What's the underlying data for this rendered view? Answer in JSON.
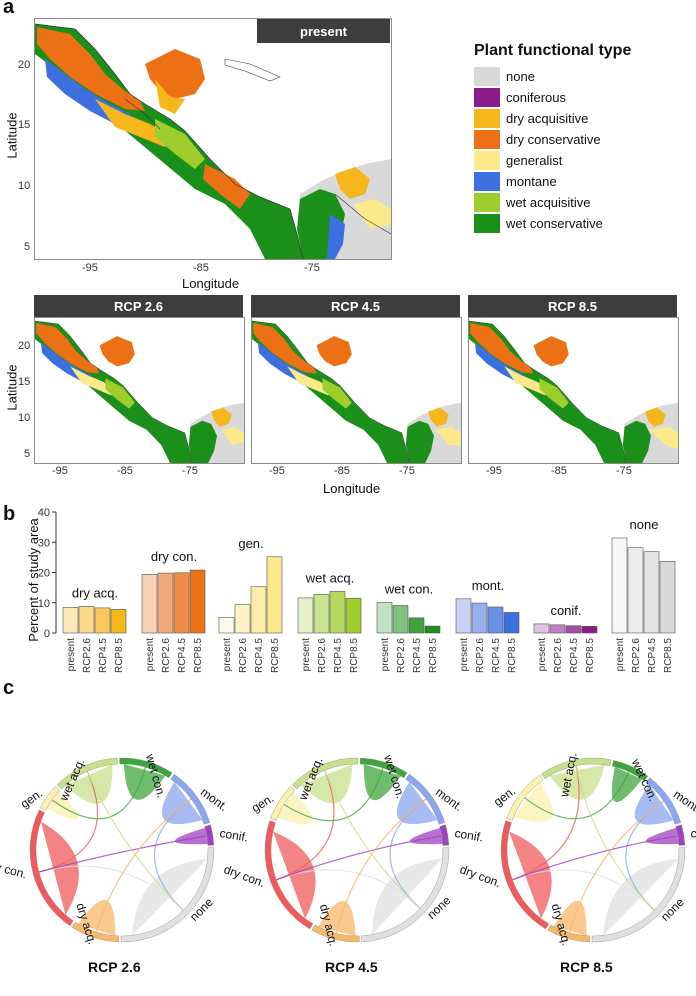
{
  "panels": {
    "a": "a",
    "b": "b",
    "c": "c"
  },
  "maps": {
    "main_title": "present",
    "small_titles": [
      "RCP 2.6",
      "RCP 4.5",
      "RCP 8.5"
    ],
    "lat_label": "Latitude",
    "lon_label": "Longitude",
    "lat_ticks_main": [
      "20",
      "15",
      "10",
      "5"
    ],
    "lat_ticks_small": [
      "20",
      "15",
      "10",
      "5"
    ],
    "lon_ticks": [
      "-95",
      "-85",
      "-75"
    ]
  },
  "legend": {
    "title": "Plant functional type",
    "items": [
      {
        "label": "none",
        "color": "#d9d9d9"
      },
      {
        "label": "coniferous",
        "color": "#8b1a8b"
      },
      {
        "label": "dry acquisitive",
        "color": "#f5b71b"
      },
      {
        "label": "dry conservative",
        "color": "#ec7014"
      },
      {
        "label": "generalist",
        "color": "#fce98c"
      },
      {
        "label": "montane",
        "color": "#3c6fe0"
      },
      {
        "label": "wet acquisitive",
        "color": "#9fcd2c"
      },
      {
        "label": "wet conservative",
        "color": "#1a8f1a"
      }
    ]
  },
  "chart_data": {
    "type": "bar",
    "ylabel": "Percent of study area",
    "ylim": [
      0,
      40
    ],
    "yticks": [
      "0",
      "10",
      "20",
      "30",
      "40"
    ],
    "scenarios": [
      "present",
      "RCP2.6",
      "RCP4.5",
      "RCP8.5"
    ],
    "groups": [
      {
        "name": "dry acq.",
        "values": [
          8.5,
          8.8,
          8.3,
          7.8
        ],
        "colors": [
          "#fde9b8",
          "#fcd98a",
          "#f9c95c",
          "#f5b71b"
        ]
      },
      {
        "name": "dry con.",
        "values": [
          19.4,
          19.8,
          19.9,
          20.8
        ],
        "colors": [
          "#f7d2b6",
          "#f3aa78",
          "#ef8c45",
          "#ec7014"
        ]
      },
      {
        "name": "gen.",
        "values": [
          5.2,
          9.4,
          15.3,
          25.2
        ],
        "colors": [
          "#fefaeb",
          "#fdf3c7",
          "#fcedaa",
          "#fce98c"
        ]
      },
      {
        "name": "wet acq.",
        "values": [
          11.6,
          12.8,
          13.8,
          11.5
        ],
        "colors": [
          "#e4f2c9",
          "#c9e590",
          "#b3d95d",
          "#9fcd2c"
        ]
      },
      {
        "name": "wet con.",
        "values": [
          10.1,
          9.1,
          5.0,
          2.3
        ],
        "colors": [
          "#c2e3c2",
          "#7fc37f",
          "#3fa23f",
          "#1a8f1a"
        ]
      },
      {
        "name": "mont.",
        "values": [
          11.3,
          9.9,
          8.6,
          6.8
        ],
        "colors": [
          "#c5d3f5",
          "#97b0ee",
          "#6a8fe7",
          "#3c6fe0"
        ]
      },
      {
        "name": "conif.",
        "values": [
          3.0,
          2.7,
          2.4,
          2.2
        ],
        "colors": [
          "#dfc2df",
          "#bf80bf",
          "#a34da3",
          "#8b1a8b"
        ]
      },
      {
        "name": "none",
        "values": [
          31.4,
          28.2,
          26.9,
          23.7
        ],
        "colors": [
          "#f7f7f7",
          "#ececec",
          "#e3e3e3",
          "#d9d9d9"
        ]
      }
    ]
  },
  "chords": {
    "titles": [
      "RCP 2.6",
      "RCP 4.5",
      "RCP 8.5"
    ],
    "sectors": [
      {
        "label": "none",
        "color": "#e0e0e0"
      },
      {
        "label": "dry acq.",
        "color": "#f9b768"
      },
      {
        "label": "dry con.",
        "color": "#f05a5a"
      },
      {
        "label": "gen.",
        "color": "#fcf0b0"
      },
      {
        "label": "wet acq.",
        "color": "#c7e08a"
      },
      {
        "label": "wet con.",
        "color": "#3fa63f"
      },
      {
        "label": "mont.",
        "color": "#8aa6ef"
      },
      {
        "label": "conif.",
        "color": "#a040c0"
      }
    ],
    "shares": [
      [
        0.26,
        0.09,
        0.23,
        0.05,
        0.12,
        0.1,
        0.11,
        0.04
      ],
      [
        0.25,
        0.09,
        0.22,
        0.07,
        0.13,
        0.09,
        0.11,
        0.04
      ],
      [
        0.26,
        0.08,
        0.22,
        0.1,
        0.13,
        0.07,
        0.1,
        0.04
      ]
    ]
  }
}
